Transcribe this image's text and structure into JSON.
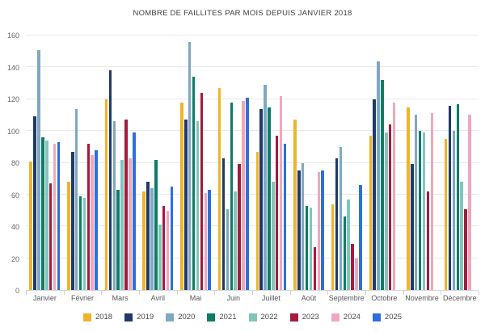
{
  "chart_data": {
    "type": "bar",
    "title": "NOMBRE DE FAILLITES PAR MOIS DEPUIS JANVIER 2018",
    "categories": [
      "Janvier",
      "Février",
      "Mars",
      "Avril",
      "Mai",
      "Juin",
      "Juillet",
      "Août",
      "Septembre",
      "Octobre",
      "Novembre",
      "Décembre"
    ],
    "series": [
      {
        "name": "2018",
        "color": "#F0B429",
        "values": [
          81,
          68,
          120,
          62,
          118,
          127,
          87,
          107,
          54,
          97,
          115,
          95
        ]
      },
      {
        "name": "2019",
        "color": "#1F3A68",
        "values": [
          109,
          87,
          138,
          68,
          107,
          83,
          114,
          75,
          83,
          120,
          79,
          116
        ]
      },
      {
        "name": "2020",
        "color": "#7FA8C4",
        "values": [
          151,
          114,
          106,
          64,
          156,
          51,
          129,
          80,
          90,
          144,
          110,
          100
        ]
      },
      {
        "name": "2021",
        "color": "#0E7C66",
        "values": [
          96,
          59,
          63,
          82,
          134,
          118,
          115,
          53,
          46,
          132,
          100,
          117
        ]
      },
      {
        "name": "2022",
        "color": "#80C7BB",
        "values": [
          94,
          58,
          82,
          41,
          106,
          62,
          68,
          52,
          57,
          99,
          99,
          68
        ]
      },
      {
        "name": "2023",
        "color": "#A31B3D",
        "values": [
          67,
          92,
          107,
          53,
          124,
          79,
          97,
          27,
          29,
          104,
          62,
          51
        ]
      },
      {
        "name": "2024",
        "color": "#F1A7BB",
        "values": [
          92,
          85,
          83,
          50,
          61,
          119,
          122,
          74,
          20,
          118,
          111,
          110
        ]
      },
      {
        "name": "2025",
        "color": "#2E6EDE",
        "values": [
          93,
          88,
          99,
          65,
          63,
          121,
          92,
          75,
          66,
          null,
          null,
          null
        ]
      }
    ],
    "ylim": [
      0,
      160
    ],
    "yticks": [
      0,
      20,
      40,
      60,
      80,
      100,
      120,
      140,
      160
    ],
    "grid": true,
    "legend_position": "bottom"
  }
}
